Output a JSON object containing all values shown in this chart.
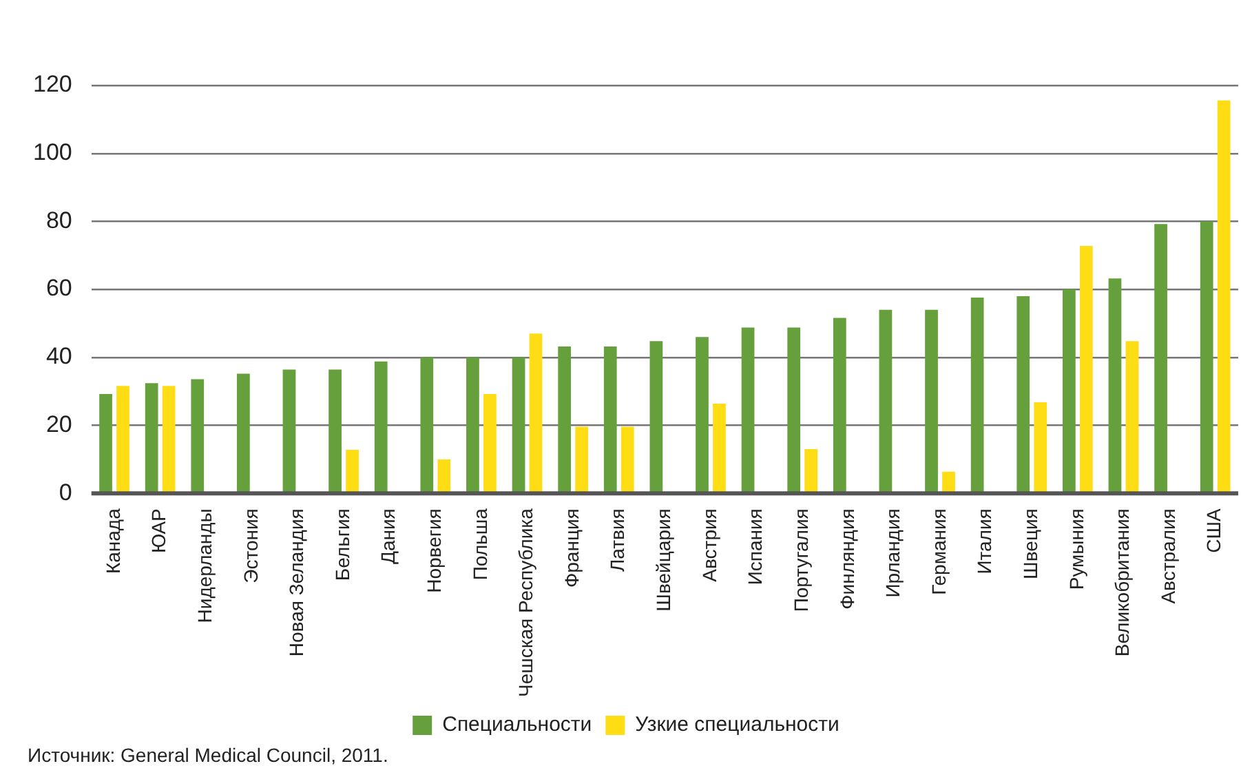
{
  "chart_data": {
    "type": "bar",
    "categories": [
      "Канада",
      "ЮАР",
      "Нидерланды",
      "Эстония",
      "Новая Зеландия",
      "Бельгия",
      "Дания",
      "Норвегия",
      "Польша",
      "Чешская Республика",
      "Франция",
      "Латвия",
      "Швейцария",
      "Австрия",
      "Испания",
      "Португалия",
      "Финляндия",
      "Ирландия",
      "Германия",
      "Италия",
      "Швеция",
      "Румыния",
      "Великобритания",
      "Австралия",
      "США"
    ],
    "series": [
      {
        "name": "Специальности",
        "color": "#66a03c",
        "values": [
          29.2,
          32.4,
          33.6,
          35.2,
          36.4,
          36.4,
          38.8,
          40,
          40,
          40,
          43.2,
          43.2,
          44.8,
          46,
          48.8,
          48.8,
          51.6,
          54,
          54,
          57.6,
          58,
          60,
          63.2,
          79.2,
          80
        ]
      },
      {
        "name": "Узкие специальности",
        "color": "#ffdd15",
        "values": [
          31.6,
          31.6,
          null,
          null,
          null,
          12.8,
          null,
          10,
          29.2,
          47,
          19.6,
          19.6,
          null,
          26.4,
          null,
          13,
          null,
          null,
          6.4,
          null,
          26.8,
          72.8,
          44.8,
          null,
          115.6
        ]
      }
    ],
    "ylim": [
      0,
      120
    ],
    "yticks": [
      0,
      20,
      40,
      60,
      80,
      100,
      120
    ],
    "grid": "y",
    "legend": "bottom",
    "annotations": [
      "Источник: General Medical Council, 2011."
    ]
  }
}
